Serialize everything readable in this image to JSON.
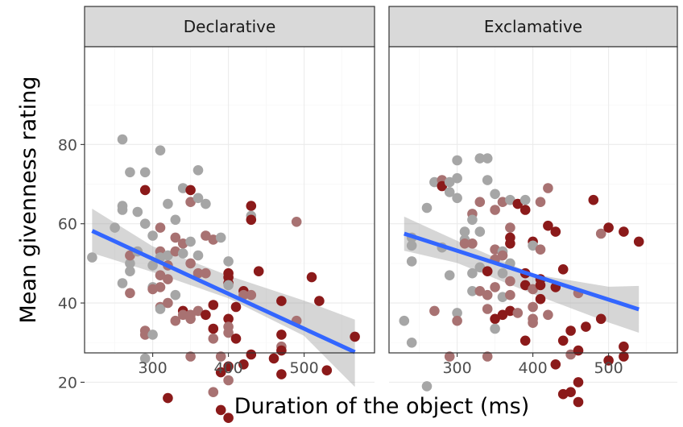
{
  "chart_data": {
    "type": "scatter",
    "xlabel": "Duration of the object (ms)",
    "ylabel": "Mean givenness rating",
    "xlim": [
      210,
      580
    ],
    "ylim": [
      8,
      90
    ],
    "x_ticks": [
      300,
      400,
      500
    ],
    "y_ticks": [
      20,
      40,
      60,
      80
    ],
    "x_tick_labels": [
      "300",
      "400",
      "500"
    ],
    "y_tick_labels": [
      "20",
      "40",
      "60",
      "80"
    ],
    "grid": true,
    "colors": {
      "point_grey": "#a6a6a6",
      "point_mid": "#a87272",
      "point_red": "#8b1a1a",
      "fit_line": "#3366ff",
      "band": "#999999",
      "strip": "#d9d9d9"
    },
    "panels": [
      {
        "name": "Declarative",
        "fit": {
          "x": [
            220,
            567
          ],
          "y": [
            58.2,
            27.6
          ]
        },
        "band": {
          "x": [
            220,
            300,
            400,
            500,
            567
          ],
          "upper": [
            63.8,
            54.3,
            46.9,
            40.6,
            35.8
          ],
          "lower": [
            52.6,
            47.8,
            41.2,
            31.7,
            18.8
          ]
        },
        "points": [
          [
            220,
            51.5,
            0
          ],
          [
            250,
            59,
            0
          ],
          [
            260,
            81.3,
            0
          ],
          [
            260,
            64.5,
            0
          ],
          [
            260,
            63.5,
            0
          ],
          [
            260,
            45,
            0
          ],
          [
            270,
            73,
            0
          ],
          [
            270,
            50,
            0
          ],
          [
            270,
            48,
            0
          ],
          [
            270,
            52,
            1
          ],
          [
            270,
            42.5,
            1
          ],
          [
            280,
            63,
            0
          ],
          [
            280,
            53,
            0
          ],
          [
            290,
            68.5,
            2
          ],
          [
            290,
            73,
            0
          ],
          [
            290,
            60,
            0
          ],
          [
            290,
            33,
            1
          ],
          [
            290,
            32,
            1
          ],
          [
            290,
            26,
            0
          ],
          [
            300,
            57,
            0
          ],
          [
            300,
            49.5,
            0
          ],
          [
            300,
            44,
            0
          ],
          [
            300,
            32,
            0
          ],
          [
            300,
            43.5,
            1
          ],
          [
            310,
            78.5,
            0
          ],
          [
            310,
            59,
            1
          ],
          [
            310,
            53,
            1
          ],
          [
            310,
            51.5,
            0
          ],
          [
            310,
            47,
            1
          ],
          [
            310,
            44,
            1
          ],
          [
            310,
            39,
            1
          ],
          [
            310,
            38.5,
            0
          ],
          [
            320,
            65,
            0
          ],
          [
            320,
            52,
            0
          ],
          [
            320,
            49.5,
            1
          ],
          [
            320,
            46,
            1
          ],
          [
            320,
            40,
            1
          ],
          [
            320,
            16,
            2
          ],
          [
            330,
            61,
            0
          ],
          [
            330,
            56.5,
            1
          ],
          [
            330,
            53,
            1
          ],
          [
            330,
            42,
            0
          ],
          [
            330,
            35.5,
            1
          ],
          [
            340,
            69,
            0
          ],
          [
            340,
            55,
            1
          ],
          [
            340,
            52.5,
            0
          ],
          [
            340,
            38,
            2
          ],
          [
            340,
            37,
            1
          ],
          [
            350,
            68.5,
            2
          ],
          [
            350,
            65.5,
            1
          ],
          [
            350,
            55.5,
            0
          ],
          [
            350,
            50,
            1
          ],
          [
            350,
            37,
            1
          ],
          [
            350,
            36,
            1
          ],
          [
            350,
            26.5,
            1
          ],
          [
            360,
            73.5,
            0
          ],
          [
            360,
            66.5,
            0
          ],
          [
            360,
            52,
            0
          ],
          [
            360,
            47.5,
            1
          ],
          [
            360,
            38,
            1
          ],
          [
            370,
            65,
            0
          ],
          [
            370,
            57,
            1
          ],
          [
            370,
            47.5,
            1
          ],
          [
            370,
            37,
            2
          ],
          [
            380,
            56,
            1
          ],
          [
            380,
            39.5,
            2
          ],
          [
            380,
            33.5,
            2
          ],
          [
            380,
            31,
            1
          ],
          [
            380,
            17.5,
            1
          ],
          [
            390,
            56.5,
            0
          ],
          [
            390,
            26.5,
            1
          ],
          [
            390,
            22.5,
            2
          ],
          [
            390,
            13,
            2
          ],
          [
            400,
            50.5,
            0
          ],
          [
            400,
            47.5,
            2
          ],
          [
            400,
            46.5,
            2
          ],
          [
            400,
            45,
            2
          ],
          [
            400,
            44.5,
            0
          ],
          [
            400,
            36,
            2
          ],
          [
            400,
            34,
            1
          ],
          [
            400,
            32.5,
            1
          ],
          [
            400,
            24,
            2
          ],
          [
            400,
            20.5,
            1
          ],
          [
            400,
            11,
            2
          ],
          [
            410,
            39,
            2
          ],
          [
            410,
            31,
            2
          ],
          [
            420,
            43,
            2
          ],
          [
            420,
            42,
            1
          ],
          [
            420,
            24.5,
            2
          ],
          [
            430,
            64.5,
            2
          ],
          [
            430,
            62,
            0
          ],
          [
            430,
            61,
            2
          ],
          [
            430,
            42,
            1
          ],
          [
            430,
            27,
            2
          ],
          [
            440,
            48,
            2
          ],
          [
            460,
            26,
            2
          ],
          [
            470,
            40.5,
            2
          ],
          [
            470,
            32,
            2
          ],
          [
            470,
            29,
            1
          ],
          [
            470,
            28,
            2
          ],
          [
            470,
            22,
            2
          ],
          [
            490,
            60.5,
            1
          ],
          [
            490,
            35.5,
            1
          ],
          [
            510,
            46.5,
            2
          ],
          [
            520,
            40.5,
            2
          ],
          [
            530,
            23,
            2
          ],
          [
            567,
            31.5,
            2
          ]
        ]
      },
      {
        "name": "Exclamative",
        "fit": {
          "x": [
            230,
            540
          ],
          "y": [
            57.5,
            38.4
          ]
        },
        "band": {
          "x": [
            230,
            300,
            400,
            500,
            540
          ],
          "upper": [
            61.8,
            55.7,
            47.3,
            44.1,
            44.3
          ],
          "lower": [
            53.2,
            50.1,
            42.3,
            35.1,
            32.5
          ]
        },
        "points": [
          [
            230,
            35.5,
            0
          ],
          [
            240,
            56.5,
            0
          ],
          [
            240,
            54.5,
            0
          ],
          [
            240,
            50.5,
            0
          ],
          [
            240,
            30,
            0
          ],
          [
            260,
            64,
            0
          ],
          [
            260,
            19,
            0
          ],
          [
            270,
            70.5,
            0
          ],
          [
            270,
            38,
            1
          ],
          [
            280,
            71,
            1
          ],
          [
            280,
            69.5,
            2
          ],
          [
            280,
            54,
            0
          ],
          [
            290,
            70.5,
            0
          ],
          [
            290,
            68,
            0
          ],
          [
            290,
            47,
            0
          ],
          [
            290,
            26.5,
            1
          ],
          [
            300,
            76,
            0
          ],
          [
            300,
            71.5,
            0
          ],
          [
            300,
            66.5,
            0
          ],
          [
            300,
            37.5,
            0
          ],
          [
            300,
            35.5,
            1
          ],
          [
            310,
            58,
            0
          ],
          [
            310,
            56,
            0
          ],
          [
            310,
            55,
            1
          ],
          [
            320,
            62.5,
            1
          ],
          [
            320,
            61,
            0
          ],
          [
            320,
            55,
            1
          ],
          [
            320,
            47.5,
            0
          ],
          [
            320,
            43,
            0
          ],
          [
            330,
            76.5,
            0
          ],
          [
            330,
            65.5,
            1
          ],
          [
            330,
            58,
            0
          ],
          [
            330,
            49,
            0
          ],
          [
            330,
            43,
            1
          ],
          [
            340,
            76.5,
            0
          ],
          [
            340,
            71,
            0
          ],
          [
            340,
            48,
            2
          ],
          [
            340,
            42,
            1
          ],
          [
            340,
            38.5,
            1
          ],
          [
            340,
            26.5,
            1
          ],
          [
            350,
            67.5,
            0
          ],
          [
            350,
            63.5,
            1
          ],
          [
            350,
            53.5,
            1
          ],
          [
            350,
            51,
            1
          ],
          [
            350,
            44,
            1
          ],
          [
            350,
            36,
            2
          ],
          [
            350,
            33.5,
            0
          ],
          [
            360,
            65.5,
            1
          ],
          [
            360,
            53,
            0
          ],
          [
            360,
            52,
            1
          ],
          [
            360,
            47.5,
            0
          ],
          [
            360,
            41.5,
            0
          ],
          [
            360,
            37,
            2
          ],
          [
            370,
            66,
            0
          ],
          [
            370,
            59,
            1
          ],
          [
            370,
            56.5,
            2
          ],
          [
            370,
            55,
            2
          ],
          [
            370,
            50,
            0
          ],
          [
            370,
            45.5,
            1
          ],
          [
            370,
            42,
            1
          ],
          [
            370,
            38,
            2
          ],
          [
            380,
            65,
            2
          ],
          [
            380,
            37.5,
            1
          ],
          [
            390,
            66,
            0
          ],
          [
            390,
            63.5,
            2
          ],
          [
            390,
            47.5,
            2
          ],
          [
            390,
            44.5,
            2
          ],
          [
            390,
            30.5,
            2
          ],
          [
            400,
            55.5,
            2
          ],
          [
            400,
            54.5,
            0
          ],
          [
            400,
            43.5,
            1
          ],
          [
            400,
            39,
            1
          ],
          [
            400,
            36,
            1
          ],
          [
            400,
            35,
            1
          ],
          [
            410,
            65.5,
            1
          ],
          [
            410,
            53.5,
            1
          ],
          [
            410,
            46,
            2
          ],
          [
            410,
            44.5,
            2
          ],
          [
            410,
            41,
            2
          ],
          [
            420,
            69,
            1
          ],
          [
            420,
            59.5,
            2
          ],
          [
            420,
            37,
            1
          ],
          [
            430,
            58,
            2
          ],
          [
            430,
            44,
            2
          ],
          [
            430,
            24.5,
            2
          ],
          [
            440,
            48.5,
            2
          ],
          [
            440,
            30.5,
            2
          ],
          [
            440,
            17,
            2
          ],
          [
            450,
            33,
            2
          ],
          [
            450,
            27,
            1
          ],
          [
            450,
            17.5,
            2
          ],
          [
            460,
            42.5,
            1
          ],
          [
            460,
            28,
            2
          ],
          [
            460,
            20,
            2
          ],
          [
            460,
            15,
            2
          ],
          [
            470,
            34,
            2
          ],
          [
            480,
            66,
            2
          ],
          [
            490,
            57.5,
            1
          ],
          [
            490,
            36,
            2
          ],
          [
            500,
            59,
            2
          ],
          [
            500,
            25.5,
            2
          ],
          [
            520,
            58,
            2
          ],
          [
            520,
            29,
            2
          ],
          [
            520,
            26.5,
            2
          ],
          [
            540,
            55.5,
            2
          ]
        ]
      }
    ]
  }
}
